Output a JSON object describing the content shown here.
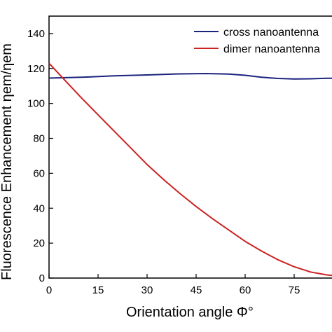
{
  "chart_data": {
    "type": "line",
    "title": "",
    "xlabel": "Orientation angle Φ°",
    "ylabel": "Fluorescence Enhancement ηem/ηem",
    "xlim": [
      0,
      90
    ],
    "ylim": [
      0,
      150
    ],
    "x_ticks": [
      "0",
      "15",
      "30",
      "45",
      "60",
      "75"
    ],
    "y_ticks": [
      "0",
      "20",
      "40",
      "60",
      "80",
      "100",
      "120",
      "140"
    ],
    "grid": false,
    "legend_position": "top-right",
    "series": [
      {
        "name": "cross nanoantenna",
        "color": "#1a237e",
        "x": [
          0,
          10,
          20,
          30,
          40,
          48,
          55,
          60,
          65,
          70,
          75,
          80,
          85,
          90
        ],
        "y": [
          114.5,
          115.0,
          115.8,
          116.3,
          116.9,
          117.1,
          116.8,
          116.1,
          115.0,
          114.3,
          114.0,
          114.1,
          114.4,
          114.5
        ]
      },
      {
        "name": "dimer nanoantenna",
        "color": "#cc2222",
        "x": [
          0,
          5,
          10,
          15,
          20,
          25,
          30,
          35,
          40,
          45,
          50,
          55,
          60,
          65,
          70,
          75,
          80,
          85,
          88,
          90
        ],
        "y": [
          123,
          113,
          103,
          93.5,
          84,
          74.5,
          65,
          56.5,
          48.5,
          41,
          34,
          27.5,
          21,
          15.5,
          10.5,
          6.5,
          3.5,
          1.8,
          1.2,
          1.0
        ]
      }
    ]
  }
}
